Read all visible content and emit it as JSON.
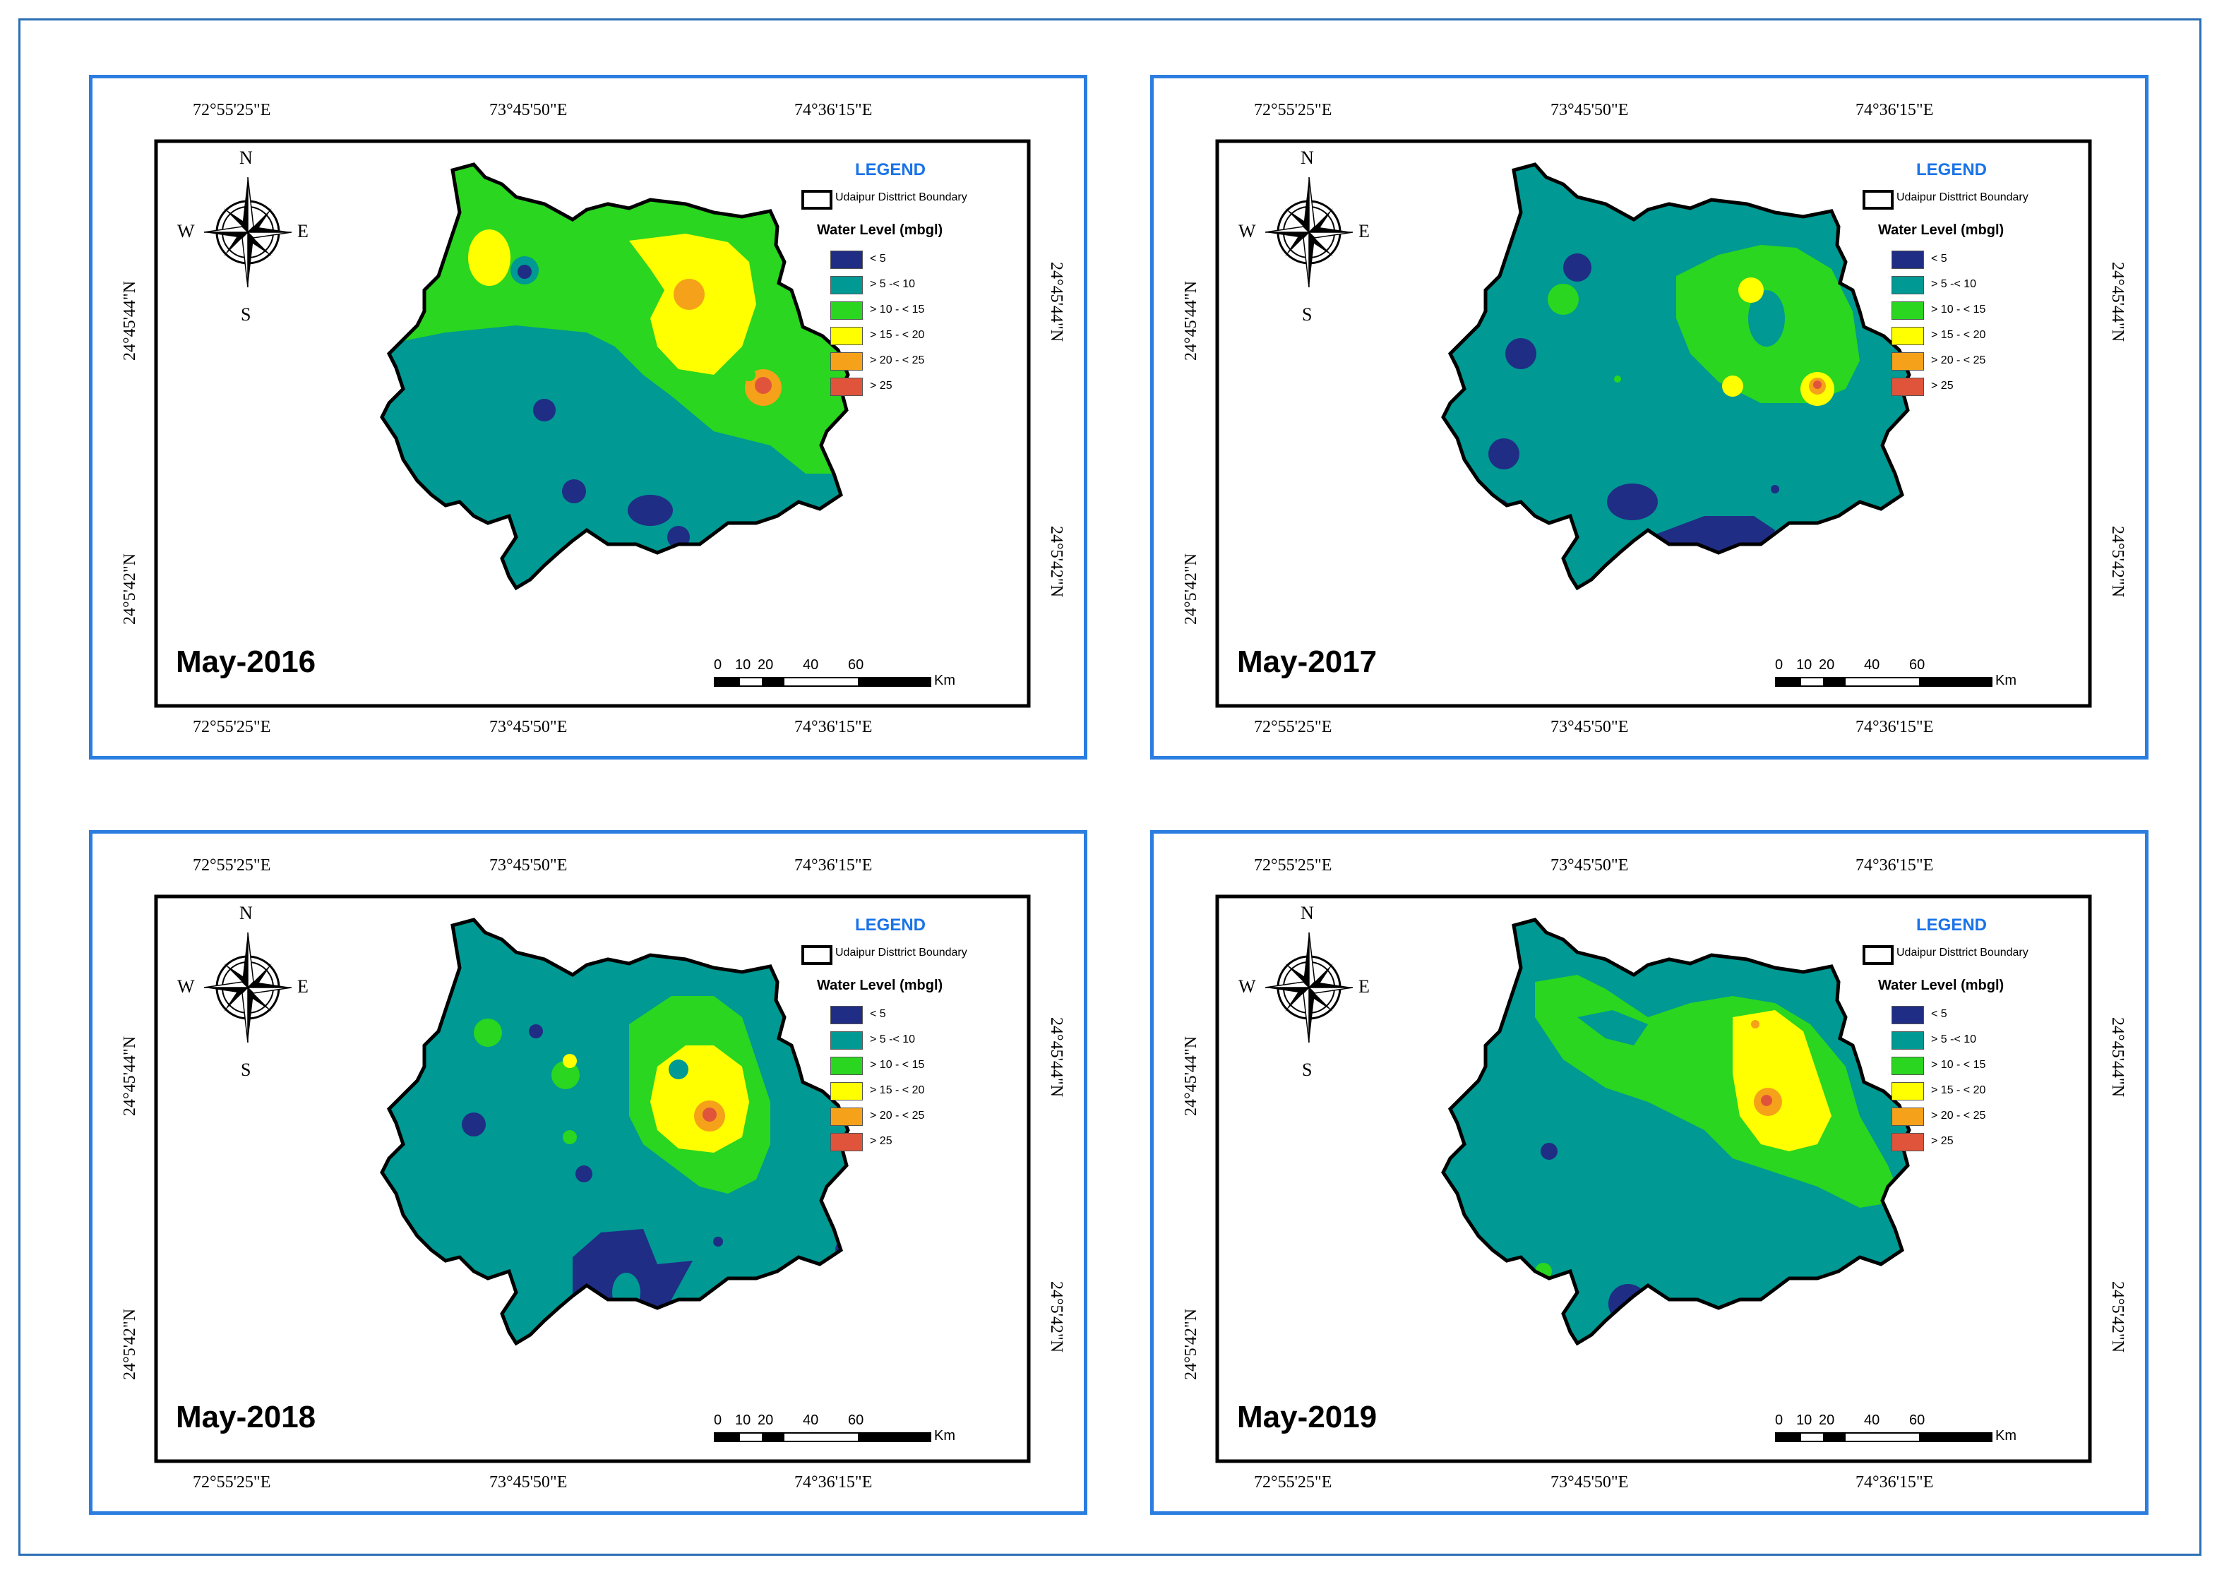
{
  "colors": {
    "frame_outer": "#2a6fb5",
    "panel_border": "#2b7de0",
    "legend_title": "#1a73e8",
    "boundary": "#000000"
  },
  "legend": {
    "title": "LEGEND",
    "boundary_label": "Udaipur Disttrict Boundary",
    "water_title": "Water Level (mbgl)",
    "classes": [
      {
        "label": "< 5",
        "color": "#1f2d85"
      },
      {
        "label": "> 5 -< 10",
        "color": "#009993"
      },
      {
        "label": "> 10 - < 15",
        "color": "#2ad61f"
      },
      {
        "label": "> 15 - < 20",
        "color": "#ffff00"
      },
      {
        "label": "> 20 - < 25",
        "color": "#f5a11a"
      },
      {
        "label": "> 25",
        "color": "#e0543c"
      }
    ]
  },
  "north_arrow": {
    "N": "N",
    "S": "S",
    "E": "E",
    "W": "W"
  },
  "scale_bar": {
    "labels": [
      "0",
      "10",
      "20",
      "40",
      "60"
    ],
    "unit": "Km"
  },
  "panels": [
    {
      "title": "May-2016",
      "top_ticks": [
        "72°55'25\"E",
        "73°45'50\"E",
        "74°36'15\"E"
      ],
      "bottom_ticks": [
        "72°55'25\"E",
        "73°45'50\"E",
        "74°36'15\"E"
      ],
      "left_ticks": [
        "24°45'44\"N",
        "24°5'42\"N"
      ],
      "right_ticks": [
        "24°45'44\"N",
        "24°5'42\"N"
      ]
    },
    {
      "title": "May-2017",
      "top_ticks": [
        "72°55'25\"E",
        "73°45'50\"E",
        "74°36'15\"E"
      ],
      "bottom_ticks": [
        "72°55'25\"E",
        "73°45'50\"E",
        "74°36'15\"E"
      ],
      "left_ticks": [
        "24°45'44\"N",
        "24°5'42\"N"
      ],
      "right_ticks": [
        "24°45'44\"N",
        "24°5'42\"N"
      ]
    },
    {
      "title": "May-2018",
      "top_ticks": [
        "72°55'25\"E",
        "73°45'50\"E",
        "74°36'15\"E"
      ],
      "bottom_ticks": [
        "72°55'25\"E",
        "73°45'50\"E",
        "74°36'15\"E"
      ],
      "left_ticks": [
        "24°45'44\"N",
        "24°5'42\"N"
      ],
      "right_ticks": [
        "24°45'44\"N",
        "24°5'42\"N"
      ]
    },
    {
      "title": "May-2019",
      "top_ticks": [
        "72°55'25\"E",
        "73°45'50\"E",
        "74°36'15\"E"
      ],
      "bottom_ticks": [
        "72°55'25\"E",
        "73°45'50\"E",
        "74°36'15\"E"
      ],
      "left_ticks": [
        "24°45'44\"N",
        "24°5'42\"N"
      ],
      "right_ticks": [
        "24°45'44\"N",
        "24°5'42\"N"
      ]
    }
  ]
}
